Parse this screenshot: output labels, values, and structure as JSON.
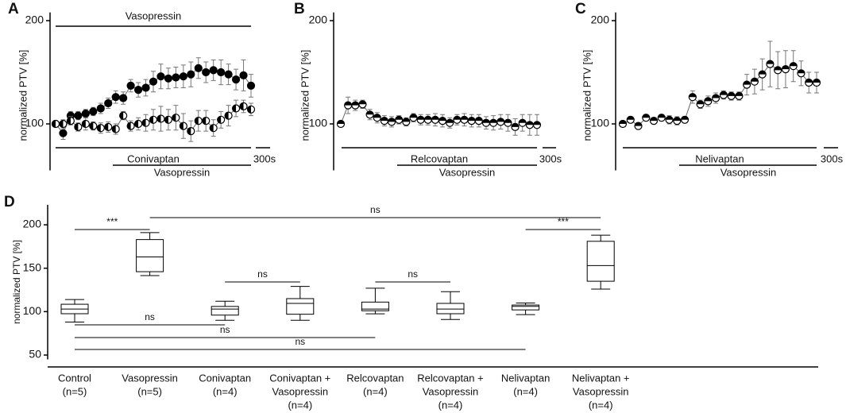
{
  "chart_data": [
    {
      "type": "line",
      "panel": "A",
      "ylabel": "normalized PTV [%]",
      "ylim": [
        55,
        208
      ],
      "yticks": [
        100,
        200
      ],
      "x": [
        1,
        2,
        3,
        4,
        5,
        6,
        7,
        8,
        9,
        10,
        11,
        12,
        13,
        14,
        15,
        16,
        17,
        18,
        19,
        20,
        21,
        22,
        23,
        24,
        25,
        26,
        27
      ],
      "xlim": [
        1,
        27
      ],
      "series": [
        {
          "marker": "filled",
          "color": "#000000",
          "values": [
            100,
            91,
            108,
            108,
            110,
            112,
            115,
            120,
            126,
            125,
            137,
            133,
            135,
            141,
            146,
            144,
            145,
            146,
            148,
            154,
            150,
            152,
            150,
            148,
            143,
            147,
            137
          ],
          "errors": [
            3,
            6,
            4,
            4,
            4,
            4,
            5,
            5,
            6,
            6,
            6,
            7,
            8,
            10,
            12,
            10,
            10,
            11,
            12,
            10,
            10,
            10,
            12,
            10,
            10,
            15,
            11
          ]
        },
        {
          "marker": "half-left",
          "color": "#000000",
          "values": [
            100,
            100,
            103,
            97,
            100,
            98,
            96,
            97,
            95,
            108,
            98,
            100,
            101,
            104,
            105,
            104,
            106,
            98,
            93,
            103,
            103,
            96,
            104,
            108,
            115,
            117,
            114
          ],
          "errors": [
            3,
            4,
            4,
            4,
            6,
            4,
            5,
            5,
            5,
            4,
            5,
            6,
            8,
            10,
            12,
            10,
            12,
            12,
            10,
            10,
            10,
            8,
            8,
            10,
            8,
            6,
            6
          ]
        }
      ],
      "annotations": [
        "Vasopressin",
        "Conivaptan",
        "Vasopressin",
        "300s"
      ]
    },
    {
      "type": "line",
      "panel": "B",
      "ylabel": "normalized PTV [%]",
      "ylim": [
        55,
        208
      ],
      "yticks": [
        100,
        200
      ],
      "x": [
        1,
        2,
        3,
        4,
        5,
        6,
        7,
        8,
        9,
        10,
        11,
        12,
        13,
        14,
        15,
        16,
        17,
        18,
        19,
        20,
        21,
        22,
        23,
        24,
        25,
        26,
        27,
        28
      ],
      "xlim": [
        1,
        28
      ],
      "series": [
        {
          "marker": "half-top",
          "color": "#000000",
          "values": [
            100,
            118,
            118,
            119,
            109,
            106,
            103,
            102,
            104,
            102,
            106,
            104,
            104,
            104,
            103,
            101,
            104,
            104,
            103,
            103,
            101,
            101,
            102,
            101,
            97,
            101,
            99,
            99
          ],
          "errors": [
            2,
            8,
            5,
            4,
            5,
            5,
            5,
            5,
            4,
            4,
            4,
            5,
            5,
            6,
            6,
            5,
            5,
            6,
            6,
            6,
            6,
            7,
            7,
            8,
            8,
            8,
            10,
            10
          ]
        }
      ],
      "annotations": [
        "Relcovaptan",
        "Vasopressin",
        "300s"
      ]
    },
    {
      "type": "line",
      "panel": "C",
      "ylabel": "normalized PTV [%]",
      "ylim": [
        55,
        208
      ],
      "yticks": [
        100,
        200
      ],
      "x": [
        1,
        2,
        3,
        4,
        5,
        6,
        7,
        8,
        9,
        10,
        11,
        12,
        13,
        14,
        15,
        16,
        17,
        18,
        19,
        20,
        21,
        22,
        23,
        24,
        25,
        26
      ],
      "xlim": [
        1,
        26
      ],
      "series": [
        {
          "marker": "half-top",
          "color": "#000000",
          "values": [
            100,
            104,
            98,
            106,
            103,
            106,
            104,
            103,
            104,
            126,
            119,
            122,
            125,
            128,
            127,
            127,
            138,
            141,
            148,
            158,
            152,
            153,
            156,
            149,
            140,
            140
          ],
          "errors": [
            2,
            3,
            2,
            3,
            3,
            3,
            4,
            4,
            3,
            6,
            4,
            5,
            5,
            4,
            4,
            4,
            10,
            12,
            15,
            22,
            18,
            18,
            15,
            12,
            10,
            10
          ]
        }
      ],
      "annotations": [
        "Nelivaptan",
        "Vasopressin",
        "300s"
      ]
    },
    {
      "type": "box",
      "panel": "D",
      "ylabel": "normalized PTV [%]",
      "ylim": [
        45,
        223
      ],
      "yticks": [
        50,
        100,
        150,
        200
      ],
      "categories": [
        [
          "Control",
          "(n=5)"
        ],
        [
          "Vasopressin",
          "(n=5)"
        ],
        [
          "Conivaptan",
          "(n=4)"
        ],
        [
          "Conivaptan +",
          "Vasopressin",
          "(n=4)"
        ],
        [
          "Relcovaptan",
          "(n=4)"
        ],
        [
          "Relcovaptan +",
          "Vasopressin",
          "(n=4)"
        ],
        [
          "Nelivaptan",
          "(n=4)"
        ],
        [
          "Nelivaptan +",
          "Vasopressin",
          "(n=4)"
        ]
      ],
      "boxes": [
        {
          "min": 88,
          "q1": 97.6,
          "median": 103,
          "q3": 108.5,
          "max": 114
        },
        {
          "min": 141.5,
          "q1": 146,
          "median": 163,
          "q3": 183,
          "max": 191
        },
        {
          "min": 90,
          "q1": 96,
          "median": 103,
          "q3": 106,
          "max": 112
        },
        {
          "min": 90,
          "q1": 97,
          "median": 109.5,
          "q3": 115,
          "max": 129
        },
        {
          "min": 97.5,
          "q1": 101,
          "median": 103,
          "q3": 111,
          "max": 127
        },
        {
          "min": 91,
          "q1": 97.6,
          "median": 103,
          "q3": 109.5,
          "max": 123
        },
        {
          "min": 96.6,
          "q1": 102,
          "median": 106,
          "q3": 107.6,
          "max": 110
        },
        {
          "min": 126,
          "q1": 135,
          "median": 153,
          "q3": 181,
          "max": 188
        }
      ],
      "comparisons": [
        {
          "from": 0,
          "to": 1,
          "label": "***"
        },
        {
          "from": 1,
          "to": 7,
          "label": "ns"
        },
        {
          "from": 2,
          "to": 3,
          "label": "ns"
        },
        {
          "from": 4,
          "to": 5,
          "label": "ns"
        },
        {
          "from": 6,
          "to": 7,
          "label": "***"
        },
        {
          "from": 0,
          "to": 2,
          "label": "ns"
        },
        {
          "from": 0,
          "to": 4,
          "label": "ns"
        },
        {
          "from": 0,
          "to": 6,
          "label": "ns"
        }
      ]
    }
  ]
}
